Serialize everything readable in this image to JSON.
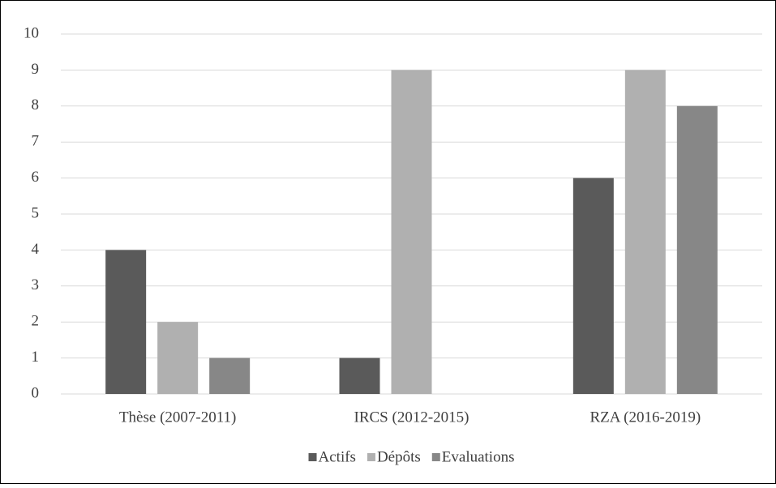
{
  "chart_data": {
    "type": "bar",
    "categories": [
      "Thèse (2007-2011)",
      "IRCS (2012-2015)",
      "RZA (2016-2019)"
    ],
    "series": [
      {
        "name": "Actifs",
        "color": "#5a5a5a",
        "values": [
          4,
          1,
          6
        ]
      },
      {
        "name": "Dépôts",
        "color": "#b0b0b0",
        "values": [
          2,
          9,
          9
        ]
      },
      {
        "name": "Evaluations",
        "color": "#878787",
        "values": [
          1,
          0,
          8
        ]
      }
    ],
    "ylim": [
      0,
      10
    ],
    "yticks": [
      0,
      1,
      2,
      3,
      4,
      5,
      6,
      7,
      8,
      9,
      10
    ],
    "grid": true,
    "legend": "bottom"
  }
}
